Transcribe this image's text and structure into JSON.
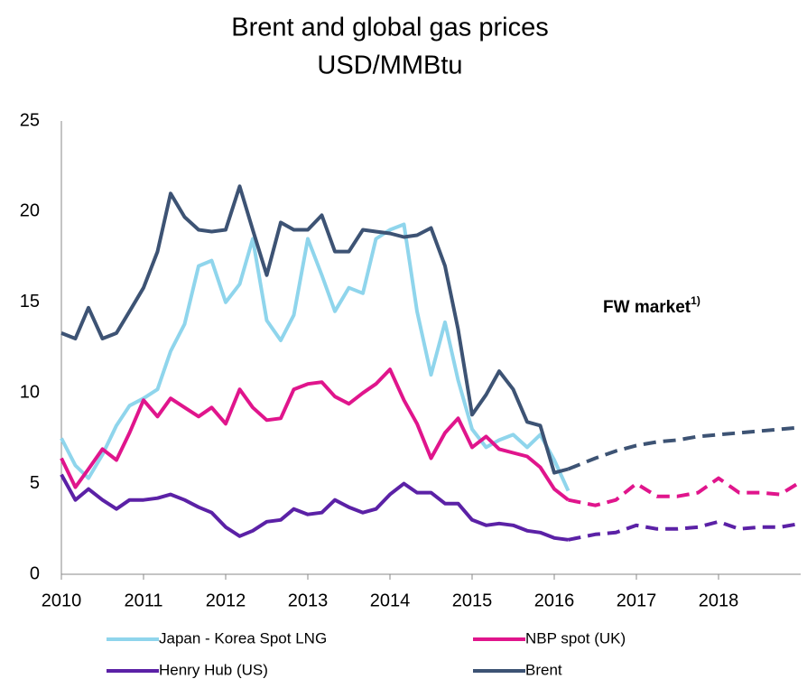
{
  "chart_data": {
    "type": "line",
    "title": "Brent and global gas prices",
    "subtitle": "USD/MMBtu",
    "annotation": {
      "text": "FW market",
      "note": "1)"
    },
    "x": [
      2010,
      2010.17,
      2010.33,
      2010.5,
      2010.67,
      2010.83,
      2011,
      2011.17,
      2011.33,
      2011.5,
      2011.67,
      2011.83,
      2012,
      2012.17,
      2012.33,
      2012.5,
      2012.67,
      2012.83,
      2013,
      2013.17,
      2013.33,
      2013.5,
      2013.67,
      2013.83,
      2014,
      2014.17,
      2014.33,
      2014.5,
      2014.67,
      2014.83,
      2015,
      2015.17,
      2015.33,
      2015.5,
      2015.67,
      2015.83,
      2016,
      2016.17
    ],
    "forward_x": [
      2016.17,
      2016.5,
      2016.75,
      2017,
      2017.25,
      2017.5,
      2017.75,
      2018,
      2018.25,
      2018.5,
      2018.75,
      2019
    ],
    "series": [
      {
        "name": "Japan - Korea Spot LNG",
        "color": "#8fd5ec",
        "values": [
          7.5,
          6.0,
          5.3,
          6.6,
          8.2,
          9.3,
          9.7,
          10.2,
          12.3,
          13.8,
          17.0,
          17.3,
          15.0,
          16.0,
          18.5,
          14.0,
          12.9,
          14.3,
          18.5,
          16.5,
          14.5,
          15.8,
          15.5,
          18.5,
          19.0,
          19.3,
          14.5,
          11.0,
          13.9,
          10.7,
          8.0,
          7.0,
          7.4,
          7.7,
          7.0,
          7.7,
          6.3,
          4.6
        ]
      },
      {
        "name": "NBP spot (UK)",
        "color": "#e0158c",
        "values": [
          6.4,
          4.8,
          5.8,
          6.9,
          6.3,
          7.8,
          9.6,
          8.7,
          9.7,
          9.2,
          8.7,
          9.2,
          8.3,
          10.2,
          9.2,
          8.5,
          8.6,
          10.2,
          10.5,
          10.6,
          9.8,
          9.4,
          10.0,
          10.5,
          11.3,
          9.6,
          8.3,
          6.4,
          7.8,
          8.6,
          7.0,
          7.6,
          6.9,
          6.7,
          6.5,
          5.9,
          4.7,
          4.1
        ],
        "forward_values": [
          4.1,
          3.8,
          4.1,
          5.0,
          4.3,
          4.3,
          4.5,
          5.3,
          4.5,
          4.5,
          4.4,
          5.1
        ]
      },
      {
        "name": "Henry Hub (US)",
        "color": "#5b21a6",
        "values": [
          5.5,
          4.1,
          4.7,
          4.1,
          3.6,
          4.1,
          4.1,
          4.2,
          4.4,
          4.1,
          3.7,
          3.4,
          2.6,
          2.1,
          2.4,
          2.9,
          3.0,
          3.6,
          3.3,
          3.4,
          4.1,
          3.7,
          3.4,
          3.6,
          4.4,
          5.0,
          4.5,
          4.5,
          3.9,
          3.9,
          3.0,
          2.7,
          2.8,
          2.7,
          2.4,
          2.3,
          2.0,
          1.9
        ],
        "forward_values": [
          1.9,
          2.2,
          2.3,
          2.7,
          2.5,
          2.5,
          2.6,
          2.9,
          2.5,
          2.6,
          2.6,
          2.8
        ]
      },
      {
        "name": "Brent",
        "color": "#3d5374",
        "values": [
          13.3,
          13.0,
          14.7,
          13.0,
          13.3,
          14.5,
          15.8,
          17.8,
          21.0,
          19.7,
          19.0,
          18.9,
          19.0,
          21.4,
          19.0,
          16.5,
          19.4,
          19.0,
          19.0,
          19.8,
          17.8,
          17.8,
          19.0,
          18.9,
          18.8,
          18.6,
          18.7,
          19.1,
          17.0,
          13.5,
          8.8,
          9.9,
          11.2,
          10.2,
          8.4,
          8.2,
          5.6,
          5.8
        ],
        "forward_values": [
          5.8,
          6.4,
          6.8,
          7.1,
          7.3,
          7.4,
          7.6,
          7.7,
          7.8,
          7.9,
          8.0,
          8.1
        ]
      }
    ],
    "xlim": [
      2010,
      2019
    ],
    "xticks": [
      2010,
      2011,
      2012,
      2013,
      2014,
      2015,
      2016,
      2017,
      2018
    ],
    "ylim": [
      0,
      25
    ],
    "yticks": [
      0,
      5,
      10,
      15,
      20,
      25
    ],
    "grid": false,
    "legend": "bottom"
  }
}
